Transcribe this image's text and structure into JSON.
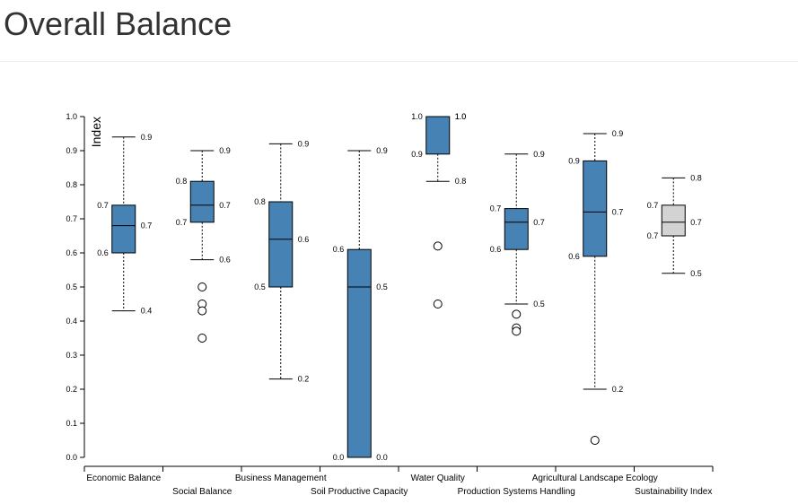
{
  "page": {
    "title": "Overall Balance"
  },
  "chart_data": {
    "type": "boxplot",
    "title": "Overall Balance",
    "ylabel": "Index",
    "xlabel": "",
    "ylim": [
      0,
      1
    ],
    "yticks": [
      "0.0",
      "0.1",
      "0.2",
      "0.3",
      "0.4",
      "0.5",
      "0.6",
      "0.7",
      "0.8",
      "0.9",
      "1.0"
    ],
    "colors": {
      "box": "#4682b4",
      "sustainability_box": "#d3d3d3",
      "stroke": "#000000"
    },
    "categories": [
      {
        "name": "Economic Balance",
        "min": 0.43,
        "q1": 0.6,
        "median": 0.68,
        "q3": 0.74,
        "max": 0.94,
        "outliers": [],
        "labels": {
          "q1": "0.6",
          "q3": "0.7",
          "median": "0.7",
          "max": "0.9",
          "min": "0.4"
        },
        "fill": "box"
      },
      {
        "name": "Social Balance",
        "min": 0.58,
        "q1": 0.69,
        "median": 0.74,
        "q3": 0.81,
        "max": 0.9,
        "outliers": [
          0.5,
          0.45,
          0.43,
          0.35
        ],
        "labels": {
          "q1": "0.7",
          "q3": "0.8",
          "median": "0.7",
          "max": "0.9",
          "min": "0.6"
        },
        "fill": "box"
      },
      {
        "name": "Business Management",
        "min": 0.23,
        "q1": 0.5,
        "median": 0.64,
        "q3": 0.75,
        "max": 0.92,
        "outliers": [],
        "labels": {
          "q1": "0.5",
          "q3": "0.8",
          "median": "0.6",
          "max": "0.9",
          "min": "0.2"
        },
        "fill": "box"
      },
      {
        "name": "Soil Productive Capacity",
        "min": 0.0,
        "q1": 0.0,
        "median": 0.5,
        "q3": 0.61,
        "max": 0.9,
        "outliers": [],
        "labels": {
          "q1": "0.0",
          "q3": "0.6",
          "median": "0.5",
          "max": "0.9",
          "min": "0.0"
        },
        "fill": "box"
      },
      {
        "name": "Water Quality",
        "min": 0.81,
        "q1": 0.89,
        "median": 1.0,
        "q3": 1.0,
        "max": 1.0,
        "outliers": [
          0.62,
          0.45
        ],
        "labels": {
          "q1": "0.9",
          "q3": "1.0",
          "median": "1.0",
          "max": "1.0",
          "min": "0.8"
        },
        "fill": "box"
      },
      {
        "name": "Production Systems Handling",
        "min": 0.45,
        "q1": 0.61,
        "median": 0.69,
        "q3": 0.73,
        "max": 0.89,
        "outliers": [
          0.42,
          0.38,
          0.37
        ],
        "labels": {
          "q1": "0.6",
          "q3": "0.7",
          "median": "0.7",
          "max": "0.9",
          "min": "0.5"
        },
        "fill": "box"
      },
      {
        "name": "Agricultural Landscape Ecology",
        "min": 0.2,
        "q1": 0.59,
        "median": 0.72,
        "q3": 0.87,
        "max": 0.95,
        "outliers": [
          0.05
        ],
        "labels": {
          "q1": "0.6",
          "q3": "0.9",
          "median": "0.7",
          "max": "0.9",
          "min": "0.2"
        },
        "fill": "box"
      },
      {
        "name": "Sustainability Index",
        "min": 0.54,
        "q1": 0.65,
        "median": 0.69,
        "q3": 0.74,
        "max": 0.82,
        "outliers": [],
        "labels": {
          "q1": "0.7",
          "q3": "0.7",
          "median": "0.7",
          "max": "0.8",
          "min": "0.5"
        },
        "fill": "sustainability_box"
      }
    ]
  }
}
